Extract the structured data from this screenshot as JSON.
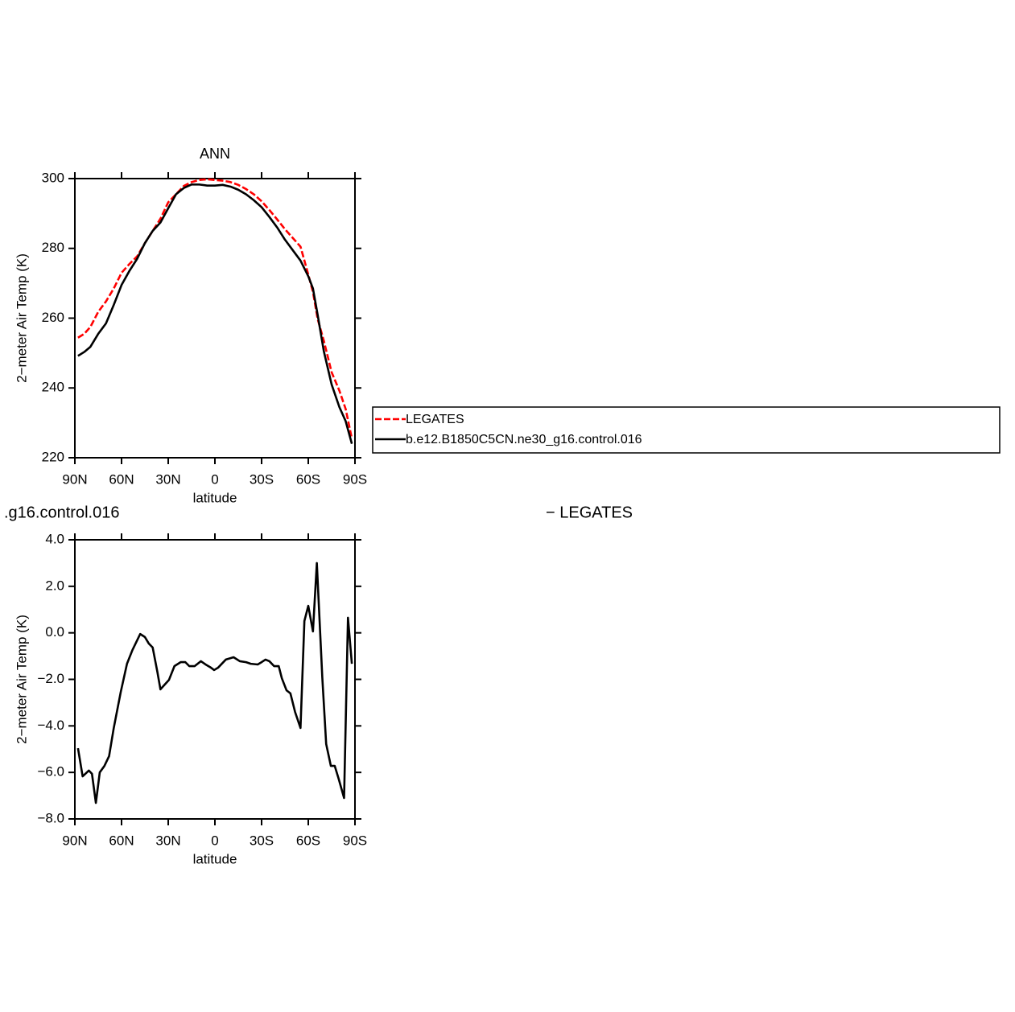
{
  "chart_data": [
    {
      "type": "line",
      "title": "ANN",
      "x_label": "latitude",
      "y_label": "2−meter Air Temp (K)",
      "x": [
        88,
        84,
        80,
        75,
        70,
        65,
        60,
        55,
        50,
        45,
        40,
        35,
        30,
        25,
        20,
        15,
        10,
        5,
        0,
        -5,
        -10,
        -15,
        -20,
        -25,
        -30,
        -35,
        -40,
        -45,
        -50,
        -55,
        -60,
        -63,
        -66,
        -70,
        -75,
        -80,
        -84,
        -88
      ],
      "xlim": [
        90,
        -90
      ],
      "xticks": [
        {
          "value": 90,
          "label": "90N"
        },
        {
          "value": 60,
          "label": "60N"
        },
        {
          "value": 30,
          "label": "30N"
        },
        0,
        {
          "value": -30,
          "label": "30S"
        },
        {
          "value": -60,
          "label": "60S"
        },
        {
          "value": -90,
          "label": "90S"
        }
      ],
      "ylim": [
        220,
        300
      ],
      "yticks": [
        220,
        240,
        260,
        280,
        300
      ],
      "legend": "right",
      "series": [
        {
          "name": "LEGATES",
          "color": "#ff0000",
          "linestyle": "dashed",
          "values": [
            254.4,
            255.5,
            257.5,
            261.8,
            264.8,
            268.5,
            273,
            275.5,
            277.7,
            281.5,
            285,
            288.5,
            293.2,
            295.5,
            297.9,
            299,
            299.6,
            299.8,
            299.6,
            299.4,
            299,
            298.2,
            297,
            295.5,
            293.5,
            291,
            288.3,
            285.5,
            283,
            280.5,
            272.5,
            267.5,
            259.8,
            253.5,
            244.5,
            239.2,
            234,
            225.5
          ]
        },
        {
          "name": "b.e12.B1850C5CN.ne30_g16.control.016",
          "color": "#000000",
          "linestyle": "solid",
          "values": [
            249.2,
            250.3,
            251.8,
            255.5,
            258.5,
            263.8,
            269.5,
            273.5,
            277,
            281.5,
            285,
            287.4,
            291.5,
            295.5,
            297.3,
            298.3,
            298.3,
            298,
            298,
            298.2,
            297.7,
            296.8,
            295.5,
            293.8,
            291.8,
            289,
            286,
            282.5,
            279.5,
            276.5,
            272,
            268.5,
            261,
            250.5,
            241,
            234.5,
            230.5,
            224
          ]
        }
      ]
    },
    {
      "type": "line",
      "title_left": ".g16.control.016",
      "title_right": "− LEGATES",
      "x_label": "latitude",
      "y_label": "2−meter Air Temp (K)",
      "x": [
        88,
        85,
        81,
        79,
        76.5,
        74,
        71,
        68,
        65,
        60.5,
        56.5,
        53,
        48,
        45,
        42.5,
        40,
        37,
        35,
        29.5,
        26,
        22,
        19,
        16.5,
        13,
        9,
        6,
        2.5,
        0.5,
        -2,
        -7,
        -12,
        -16,
        -20,
        -23,
        -27.5,
        -30,
        -32.5,
        -35,
        -38,
        -41,
        -43,
        -46,
        -48.5,
        -51.5,
        -55,
        -57.5,
        -60,
        -63,
        -65.5,
        -69,
        -71.5,
        -74.5,
        -77,
        -79.5,
        -83,
        -85.5,
        -88
      ],
      "xlim": [
        90,
        -90
      ],
      "xticks": [
        {
          "value": 90,
          "label": "90N"
        },
        {
          "value": 60,
          "label": "60N"
        },
        {
          "value": 30,
          "label": "30N"
        },
        0,
        {
          "value": -30,
          "label": "30S"
        },
        {
          "value": -60,
          "label": "60S"
        },
        {
          "value": -90,
          "label": "90S"
        }
      ],
      "ylim": [
        -8,
        4
      ],
      "yticks": [
        {
          "value": -8,
          "label": "−8.0"
        },
        {
          "value": -6,
          "label": "−6.0"
        },
        {
          "value": -4,
          "label": "−4.0"
        },
        {
          "value": -2,
          "label": "−2.0"
        },
        {
          "value": 0,
          "label": "0.0"
        },
        {
          "value": 2,
          "label": "2.0"
        },
        {
          "value": 4,
          "label": "4.0"
        }
      ],
      "series": [
        {
          "color": "#000000",
          "linestyle": "solid",
          "values": [
            -4.96,
            -6.17,
            -5.92,
            -6.06,
            -7.31,
            -6.0,
            -5.72,
            -5.3,
            -4.09,
            -2.54,
            -1.33,
            -0.74,
            -0.05,
            -0.18,
            -0.46,
            -0.63,
            -1.67,
            -2.43,
            -2.02,
            -1.43,
            -1.26,
            -1.26,
            -1.43,
            -1.43,
            -1.22,
            -1.36,
            -1.5,
            -1.6,
            -1.5,
            -1.15,
            -1.05,
            -1.22,
            -1.26,
            -1.33,
            -1.36,
            -1.26,
            -1.15,
            -1.22,
            -1.43,
            -1.43,
            -1.95,
            -2.47,
            -2.6,
            -3.4,
            -4.09,
            0.51,
            1.16,
            0.06,
            3.0,
            -1.91,
            -4.78,
            -5.72,
            -5.72,
            -6.27,
            -7.1,
            0.65,
            -1.33
          ]
        }
      ]
    }
  ]
}
